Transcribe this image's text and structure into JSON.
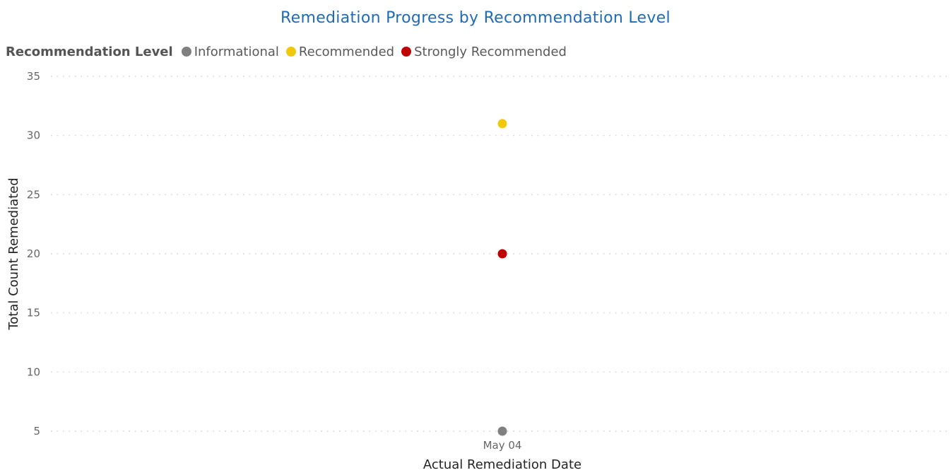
{
  "chart_data": {
    "type": "scatter",
    "title": "Remediation Progress by Recommendation Level",
    "xlabel": "Actual Remediation Date",
    "ylabel": "Total Count Remediated",
    "categories": [
      "May 04"
    ],
    "ylim": [
      5,
      35
    ],
    "yticks": [
      5,
      10,
      15,
      20,
      25,
      30,
      35
    ],
    "grid": true,
    "legend": {
      "title": "Recommendation Level",
      "placement": "top-left"
    },
    "series": [
      {
        "name": "Informational",
        "color": "#808080",
        "values": [
          5
        ]
      },
      {
        "name": "Recommended",
        "color": "#f2c80f",
        "values": [
          31
        ]
      },
      {
        "name": "Strongly Recommended",
        "color": "#c00000",
        "values": [
          20
        ]
      }
    ]
  }
}
